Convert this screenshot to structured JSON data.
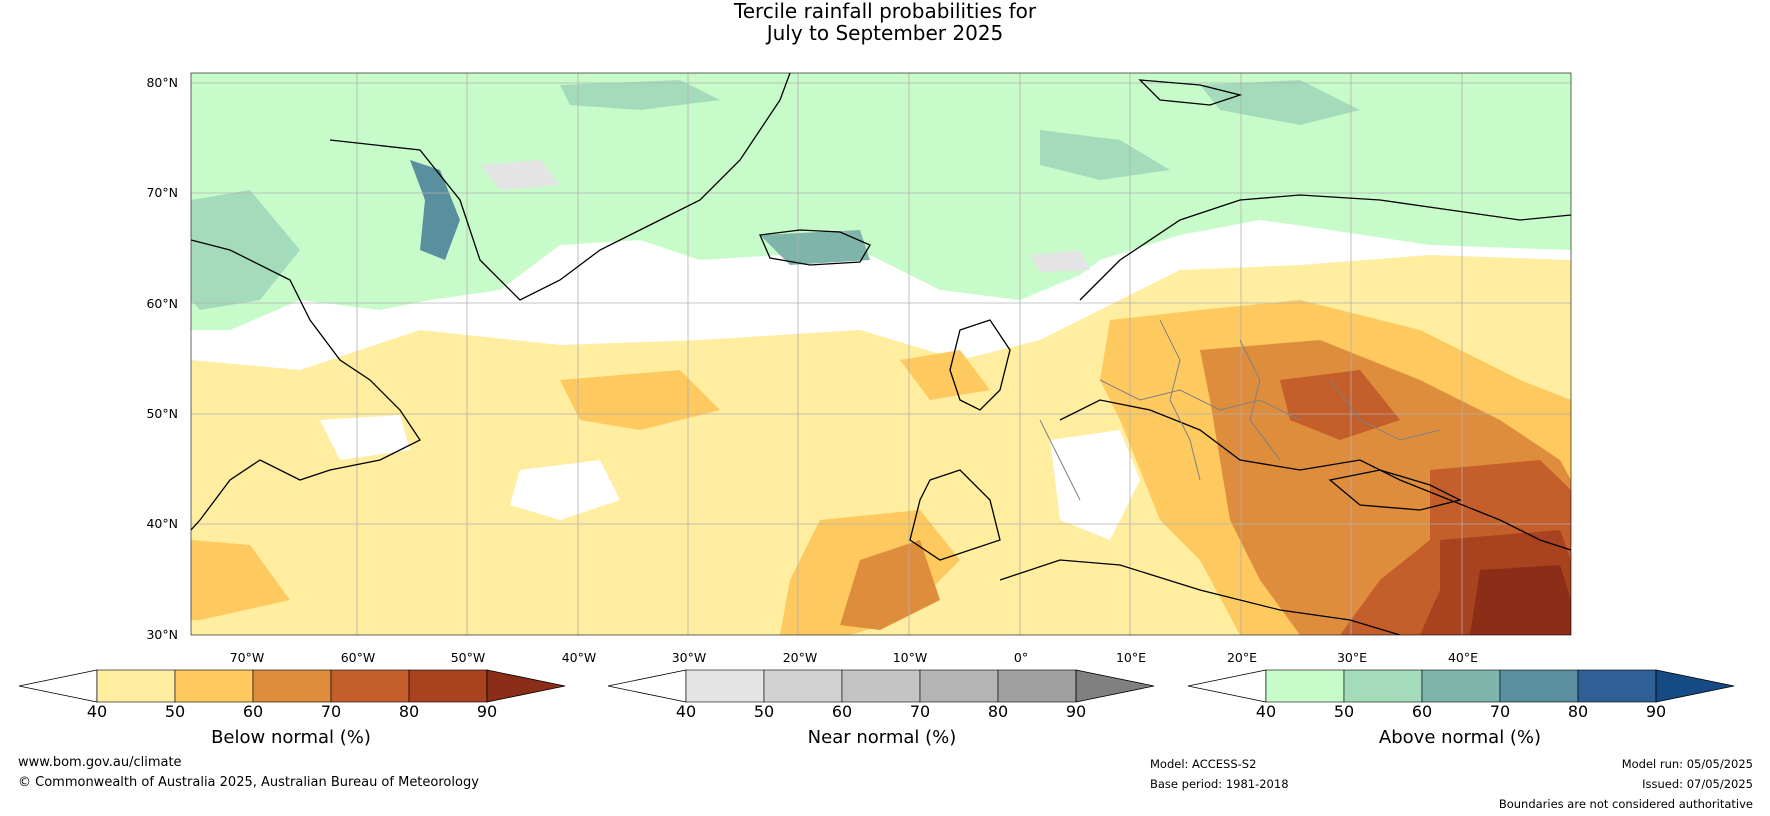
{
  "title": {
    "line1": "Tercile rainfall probabilities for",
    "line2": "July to September 2025"
  },
  "map": {
    "lat_labels": [
      "80°N",
      "70°N",
      "60°N",
      "50°N",
      "40°N",
      "30°N"
    ],
    "lon_labels": [
      "70°W",
      "60°W",
      "50°W",
      "40°W",
      "30°W",
      "20°W",
      "10°W",
      "0°",
      "10°E",
      "20°E",
      "30°E",
      "40°E"
    ],
    "colors": {
      "ocean_neutral": "#ffffff",
      "land_line": "#000000",
      "border_line": "#808080",
      "grid_line": "#b0b0b0"
    }
  },
  "legends": {
    "below": {
      "title": "Below normal (%)",
      "ticks": [
        "40",
        "50",
        "60",
        "70",
        "80",
        "90"
      ],
      "colors": [
        "#ffffff",
        "#ffeda0",
        "#fec95e",
        "#de8d3c",
        "#c45e2a",
        "#a8421f",
        "#8c2d17"
      ]
    },
    "near": {
      "title": "Near normal (%)",
      "ticks": [
        "40",
        "50",
        "60",
        "70",
        "80",
        "90"
      ],
      "colors": [
        "#ffffff",
        "#e4e4e4",
        "#d2d2d2",
        "#c4c4c4",
        "#b3b4b3",
        "#9f9f9f",
        "#808080"
      ]
    },
    "above": {
      "title": "Above normal (%)",
      "ticks": [
        "40",
        "50",
        "60",
        "70",
        "80",
        "90"
      ],
      "colors": [
        "#ffffff",
        "#c7fcca",
        "#a4dcbb",
        "#7fb4ab",
        "#5a8fa0",
        "#2f5f94",
        "#154a85"
      ]
    }
  },
  "footer": {
    "website": "www.bom.gov.au/climate",
    "copyright": "© Commonwealth of Australia 2025, Australian Bureau of Meteorology",
    "model": "Model: ACCESS-S2",
    "base_period": "Base period: 1981-2018",
    "model_run": "Model run: 05/05/2025",
    "issued": "Issued: 07/05/2025",
    "disclaimer": "Boundaries are not considered authoritative"
  }
}
